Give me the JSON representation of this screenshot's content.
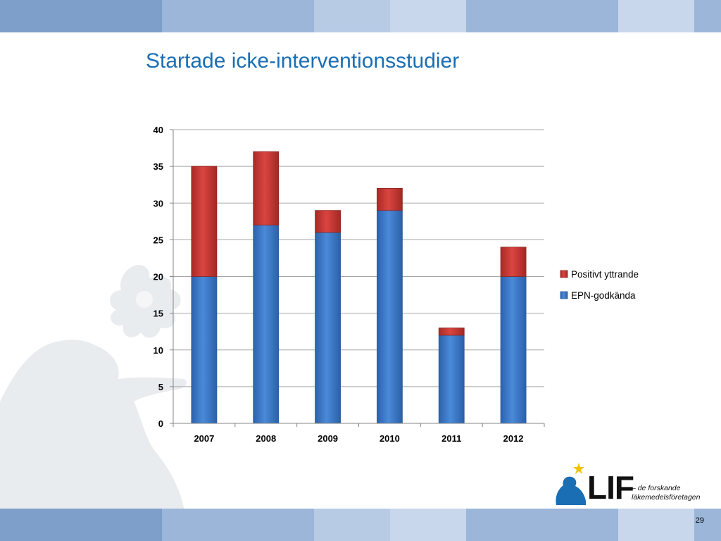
{
  "slide": {
    "title": "Startade icke-interventionsstudier",
    "page_number": "29"
  },
  "logo": {
    "text": "LIF",
    "tagline_line1": "– de forskande",
    "tagline_line2": "läkemedelsföretagen",
    "star_color": "#f2c200",
    "figure_color": "#1a6eb4"
  },
  "colors": {
    "title": "#1a6eb4",
    "band_segments": [
      "#7d9fca",
      "#9cb6d9",
      "#b7cbe5",
      "#c9d7ec",
      "#9cb6d9",
      "#c9d7ec",
      "#9cb6d9"
    ],
    "series_epn": "#3f80cf",
    "series_positivt": "#d43a35",
    "gridline": "#a6a6a6",
    "axis": "#868686"
  },
  "chart_data": {
    "type": "bar",
    "stacked": true,
    "categories": [
      "2007",
      "2008",
      "2009",
      "2010",
      "2011",
      "2012"
    ],
    "series": [
      {
        "name": "EPN-godkända",
        "values": [
          20,
          27,
          26,
          29,
          12,
          20
        ],
        "color": "#3f80cf"
      },
      {
        "name": "Positivt yttrande",
        "values": [
          15,
          10,
          3,
          3,
          1,
          4
        ],
        "color": "#d43a35"
      }
    ],
    "ylim": [
      0,
      40
    ],
    "yticks": [
      0,
      5,
      10,
      15,
      20,
      25,
      30,
      35,
      40
    ],
    "grid": true,
    "legend_position": "right",
    "legend_order": [
      "Positivt yttrande",
      "EPN-godkända"
    ]
  }
}
